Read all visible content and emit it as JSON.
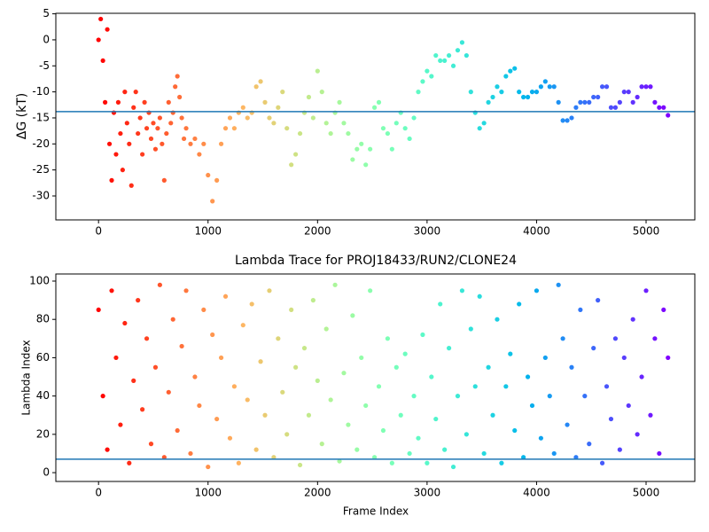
{
  "chart_data": [
    {
      "type": "scatter",
      "ylabel": "ΔG (kT)",
      "colormap": "rainbow",
      "colormap_reversed": true,
      "hline": -13.8,
      "hline_color": "#1f77b4",
      "xlim": [
        -390,
        5445
      ],
      "ylim": [
        -34.6,
        5.1
      ],
      "xticks": [
        0,
        1000,
        2000,
        3000,
        4000,
        5000
      ],
      "yticks": [
        -30,
        -25,
        -20,
        -15,
        -10,
        -5,
        0,
        5
      ],
      "x": [
        0,
        20,
        40,
        60,
        80,
        100,
        120,
        140,
        160,
        180,
        200,
        220,
        240,
        260,
        280,
        300,
        320,
        340,
        360,
        380,
        400,
        420,
        440,
        460,
        480,
        500,
        520,
        540,
        560,
        580,
        600,
        620,
        640,
        660,
        680,
        700,
        720,
        740,
        760,
        780,
        800,
        840,
        880,
        920,
        960,
        1000,
        1040,
        1080,
        1120,
        1160,
        1200,
        1240,
        1280,
        1320,
        1360,
        1400,
        1440,
        1480,
        1520,
        1560,
        1600,
        1640,
        1680,
        1720,
        1760,
        1800,
        1840,
        1880,
        1920,
        1960,
        2000,
        2040,
        2080,
        2120,
        2160,
        2200,
        2240,
        2280,
        2320,
        2360,
        2400,
        2440,
        2480,
        2520,
        2560,
        2600,
        2640,
        2680,
        2720,
        2760,
        2800,
        2840,
        2880,
        2920,
        2960,
        3000,
        3040,
        3080,
        3120,
        3160,
        3200,
        3240,
        3280,
        3320,
        3360,
        3400,
        3440,
        3480,
        3520,
        3560,
        3600,
        3640,
        3680,
        3720,
        3760,
        3800,
        3840,
        3880,
        3920,
        3960,
        4000,
        4040,
        4080,
        4120,
        4160,
        4200,
        4240,
        4280,
        4320,
        4360,
        4400,
        4440,
        4480,
        4520,
        4560,
        4600,
        4640,
        4680,
        4720,
        4760,
        4800,
        4840,
        4880,
        4920,
        4960,
        5000,
        5040,
        5080,
        5120,
        5160,
        5200
      ],
      "values": [
        0,
        4,
        -4,
        -12,
        2,
        -20,
        -27,
        -14,
        -22,
        -12,
        -18,
        -25,
        -10,
        -16,
        -20,
        -28,
        -13,
        -10,
        -18,
        -15,
        -22,
        -12,
        -17,
        -14,
        -19,
        -16,
        -21,
        -17,
        -15,
        -20,
        -27,
        -18,
        -12,
        -16,
        -14,
        -9,
        -7,
        -11,
        -15,
        -19,
        -17,
        -20,
        -19,
        -22,
        -20,
        -26,
        -31,
        -27,
        -20,
        -17,
        -15,
        -17,
        -14,
        -13,
        -15,
        -14,
        -9,
        -8,
        -12,
        -15,
        -16,
        -13,
        -10,
        -17,
        -24,
        -22,
        -18,
        -14,
        -11,
        -15,
        -6,
        -10,
        -16,
        -18,
        -14,
        -12,
        -16,
        -18,
        -23,
        -21,
        -20,
        -24,
        -21,
        -13,
        -12,
        -17,
        -18,
        -21,
        -16,
        -14,
        -17,
        -19,
        -15,
        -10,
        -8,
        -6,
        -7,
        -3,
        -4,
        -4,
        -3,
        -5,
        -2,
        -0.5,
        -3,
        -10,
        -14,
        -17,
        -16,
        -12,
        -11,
        -9,
        -10,
        -7,
        -6,
        -5.5,
        -10,
        -11,
        -11,
        -10,
        -10,
        -9,
        -8,
        -9,
        -9,
        -12,
        -15.5,
        -15.5,
        -15,
        -13,
        -12,
        -12,
        -12,
        -11,
        -11,
        -9,
        -9,
        -13,
        -13,
        -12,
        -10,
        -10,
        -12,
        -11,
        -9,
        -9,
        -9,
        -12,
        -13,
        -13,
        -14.5
      ]
    },
    {
      "type": "scatter",
      "title": "Lambda Trace for PROJ18433/RUN2/CLONE24",
      "xlabel": "Frame Index",
      "ylabel": "Lambda Index",
      "colormap": "rainbow",
      "colormap_reversed": true,
      "hline": 7,
      "hline_color": "#1f77b4",
      "xlim": [
        -390,
        5445
      ],
      "ylim": [
        -4.6,
        103.7
      ],
      "xticks": [
        0,
        1000,
        2000,
        3000,
        4000,
        5000
      ],
      "yticks": [
        0,
        20,
        40,
        60,
        80,
        100
      ],
      "x": [
        0,
        40,
        80,
        120,
        160,
        200,
        240,
        280,
        320,
        360,
        400,
        440,
        480,
        520,
        560,
        600,
        640,
        680,
        720,
        760,
        800,
        840,
        880,
        920,
        960,
        1000,
        1040,
        1080,
        1120,
        1160,
        1200,
        1240,
        1280,
        1320,
        1360,
        1400,
        1440,
        1480,
        1520,
        1560,
        1600,
        1640,
        1680,
        1720,
        1760,
        1800,
        1840,
        1880,
        1920,
        1960,
        2000,
        2040,
        2080,
        2120,
        2160,
        2200,
        2240,
        2280,
        2320,
        2360,
        2400,
        2440,
        2480,
        2520,
        2560,
        2600,
        2640,
        2680,
        2720,
        2760,
        2800,
        2840,
        2880,
        2920,
        2960,
        3000,
        3040,
        3080,
        3120,
        3160,
        3200,
        3240,
        3280,
        3320,
        3360,
        3400,
        3440,
        3480,
        3520,
        3560,
        3600,
        3640,
        3680,
        3720,
        3760,
        3800,
        3840,
        3880,
        3920,
        3960,
        4000,
        4040,
        4080,
        4120,
        4160,
        4200,
        4240,
        4280,
        4320,
        4360,
        4400,
        4440,
        4480,
        4520,
        4560,
        4600,
        4640,
        4680,
        4720,
        4760,
        4800,
        4840,
        4880,
        4920,
        4960,
        5000,
        5040,
        5080,
        5120,
        5160,
        5200
      ],
      "values": [
        85,
        40,
        12,
        95,
        60,
        25,
        78,
        5,
        48,
        90,
        33,
        70,
        15,
        55,
        98,
        8,
        42,
        80,
        22,
        66,
        95,
        10,
        50,
        35,
        85,
        3,
        72,
        28,
        60,
        92,
        18,
        45,
        5,
        77,
        38,
        88,
        12,
        58,
        30,
        95,
        8,
        70,
        42,
        20,
        85,
        55,
        4,
        65,
        30,
        90,
        48,
        15,
        75,
        38,
        98,
        6,
        52,
        25,
        82,
        12,
        60,
        35,
        95,
        8,
        45,
        22,
        70,
        5,
        55,
        30,
        62,
        10,
        40,
        18,
        72,
        5,
        50,
        28,
        88,
        12,
        65,
        3,
        40,
        95,
        20,
        75,
        45,
        92,
        10,
        55,
        30,
        80,
        5,
        45,
        62,
        22,
        88,
        8,
        50,
        35,
        95,
        18,
        60,
        40,
        10,
        98,
        70,
        25,
        55,
        8,
        85,
        40,
        15,
        65,
        90,
        5,
        45,
        28,
        70,
        12,
        60,
        35,
        80,
        20,
        50,
        95,
        30,
        70,
        10,
        85,
        60
      ]
    }
  ]
}
